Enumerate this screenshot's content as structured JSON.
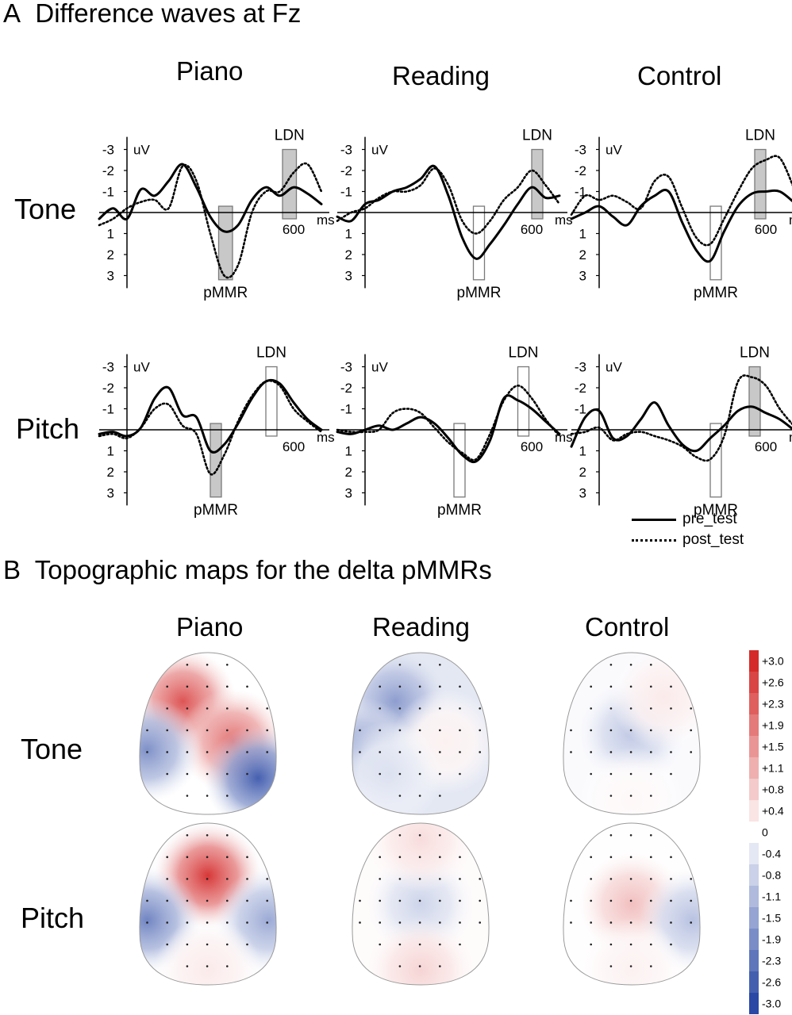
{
  "panel_a": {
    "letter": "A",
    "title": "Difference waves at Fz",
    "columns": [
      "Piano",
      "Reading",
      "Control"
    ],
    "rows": [
      "Tone",
      "Pitch"
    ],
    "legend": [
      {
        "label": "pre_test",
        "style": "solid"
      },
      {
        "label": "post_test",
        "style": "dotted"
      }
    ]
  },
  "panel_b": {
    "letter": "B",
    "title": "Topographic maps for the delta pMMRs",
    "columns": [
      "Piano",
      "Reading",
      "Control"
    ],
    "rows": [
      "Tone",
      "Pitch"
    ],
    "colorbar": {
      "labels": [
        "+3.0",
        "+2.6",
        "+2.3",
        "+1.9",
        "+1.5",
        "+1.1",
        "+0.8",
        "+0.4",
        "0",
        "-0.4",
        "-0.8",
        "-1.1",
        "-1.5",
        "-1.9",
        "-2.3",
        "-2.6",
        "-3.0"
      ],
      "max_color": "#d42a2a",
      "mid_color": "#ffffff",
      "min_color": "#2a48a4"
    },
    "maps": [
      {
        "row": "Tone",
        "column": "Piano",
        "blobs": [
          {
            "pos": "upper-left",
            "value": 2.4
          },
          {
            "pos": "center-right",
            "value": 2.0
          },
          {
            "pos": "left-edge",
            "value": -1.8
          },
          {
            "pos": "lower-right",
            "value": -2.6
          }
        ]
      },
      {
        "row": "Tone",
        "column": "Reading",
        "blobs": [
          {
            "pos": "upper-left",
            "value": -1.6
          },
          {
            "pos": "left-edge",
            "value": -1.5
          },
          {
            "pos": "center-right",
            "value": 0.2
          },
          {
            "pos": "lower-left",
            "value": -0.5
          }
        ]
      },
      {
        "row": "Tone",
        "column": "Control",
        "blobs": [
          {
            "pos": "center",
            "value": -0.9
          },
          {
            "pos": "upper-right",
            "value": 0.3
          },
          {
            "pos": "bottom",
            "value": 0.1
          }
        ]
      },
      {
        "row": "Pitch",
        "column": "Piano",
        "blobs": [
          {
            "pos": "upper-center",
            "value": 2.8
          },
          {
            "pos": "left-edge",
            "value": -2.0
          },
          {
            "pos": "right-edge",
            "value": -1.4
          },
          {
            "pos": "bottom",
            "value": 0.3
          }
        ]
      },
      {
        "row": "Pitch",
        "column": "Reading",
        "blobs": [
          {
            "pos": "center",
            "value": -0.7
          },
          {
            "pos": "top",
            "value": 0.5
          },
          {
            "pos": "bottom",
            "value": 0.6
          }
        ]
      },
      {
        "row": "Pitch",
        "column": "Control",
        "blobs": [
          {
            "pos": "center",
            "value": 0.9
          },
          {
            "pos": "right-edge",
            "value": -1.0
          },
          {
            "pos": "bottom",
            "value": 0.2
          }
        ]
      }
    ]
  },
  "chart_data": [
    {
      "type": "line",
      "row": "Tone",
      "column": "Piano",
      "xlabel": "ms",
      "ylabel": "uV",
      "x_ticks": [
        600
      ],
      "y_ticks": [
        -3,
        -2,
        -1,
        1,
        2,
        3
      ],
      "y_inverted": true,
      "x": [
        -100,
        -50,
        0,
        50,
        100,
        150,
        200,
        250,
        300,
        350,
        400,
        450,
        500,
        550,
        600,
        650,
        700
      ],
      "series": [
        {
          "name": "pre_test",
          "values": [
            0.3,
            -0.2,
            0.3,
            -1.1,
            -0.8,
            -1.5,
            -2.3,
            -1.2,
            0.2,
            0.9,
            0.6,
            -0.6,
            -1.2,
            -0.8,
            -1.2,
            -0.9,
            -0.4
          ]
        },
        {
          "name": "post_test",
          "values": [
            0.6,
            0.3,
            -0.2,
            -0.5,
            -0.6,
            -0.2,
            -2.2,
            -1.5,
            1.0,
            3.0,
            2.5,
            0.0,
            -1.0,
            -1.0,
            -1.9,
            -2.3,
            -1.0
          ]
        }
      ],
      "annotations": [
        {
          "text": "pMMR",
          "window": [
            330,
            380
          ],
          "fill": "grey"
        },
        {
          "text": "LDN",
          "window": [
            560,
            610
          ],
          "fill": "grey"
        }
      ]
    },
    {
      "type": "line",
      "row": "Tone",
      "column": "Reading",
      "xlabel": "ms",
      "ylabel": "uV",
      "x_ticks": [
        600
      ],
      "y_ticks": [
        -3,
        -2,
        -1,
        1,
        2,
        3
      ],
      "y_inverted": true,
      "x": [
        -100,
        -50,
        0,
        50,
        100,
        150,
        200,
        250,
        300,
        350,
        400,
        450,
        500,
        550,
        600,
        650,
        700
      ],
      "series": [
        {
          "name": "pre_test",
          "values": [
            0.2,
            0.4,
            -0.4,
            -0.6,
            -1.0,
            -1.2,
            -1.6,
            -2.2,
            -0.8,
            1.2,
            2.2,
            1.5,
            0.6,
            -0.4,
            -1.2,
            -0.7,
            -0.8
          ]
        },
        {
          "name": "post_test",
          "values": [
            0.4,
            0.0,
            -0.2,
            -0.7,
            -1.0,
            -1.0,
            -1.3,
            -2.1,
            -1.3,
            0.4,
            1.0,
            0.4,
            -0.6,
            -1.2,
            -2.0,
            -1.3,
            -0.4
          ]
        }
      ],
      "annotations": [
        {
          "text": "pMMR",
          "window": [
            390,
            430
          ],
          "fill": "none"
        },
        {
          "text": "LDN",
          "window": [
            600,
            640
          ],
          "fill": "grey"
        }
      ]
    },
    {
      "type": "line",
      "row": "Tone",
      "column": "Control",
      "xlabel": "ms",
      "ylabel": "uV",
      "x_ticks": [
        600
      ],
      "y_ticks": [
        -3,
        -2,
        -1,
        1,
        2,
        3
      ],
      "y_inverted": true,
      "x": [
        -100,
        -50,
        0,
        50,
        100,
        150,
        200,
        250,
        300,
        350,
        400,
        450,
        500,
        550,
        600,
        650,
        700
      ],
      "series": [
        {
          "name": "pre_test",
          "values": [
            0.3,
            0.0,
            -0.3,
            0.2,
            0.6,
            -0.3,
            -0.8,
            -1.0,
            0.5,
            1.8,
            2.3,
            0.9,
            -0.3,
            -0.9,
            -1.0,
            -1.0,
            -0.5
          ]
        },
        {
          "name": "post_test",
          "values": [
            0.1,
            -0.8,
            -0.6,
            -0.8,
            -0.5,
            -0.2,
            -1.5,
            -1.7,
            -0.2,
            1.2,
            1.5,
            0.3,
            -1.0,
            -2.1,
            -2.5,
            -2.6,
            -1.2
          ]
        }
      ],
      "annotations": [
        {
          "text": "pMMR",
          "window": [
            400,
            440
          ],
          "fill": "none"
        },
        {
          "text": "LDN",
          "window": [
            560,
            600
          ],
          "fill": "grey"
        }
      ]
    },
    {
      "type": "line",
      "row": "Pitch",
      "column": "Piano",
      "xlabel": "ms",
      "ylabel": "uV",
      "x_ticks": [
        600
      ],
      "y_ticks": [
        -3,
        -2,
        -1,
        1,
        2,
        3
      ],
      "y_inverted": true,
      "x": [
        -100,
        -50,
        0,
        50,
        100,
        150,
        200,
        250,
        300,
        350,
        400,
        450,
        500,
        550,
        600,
        650,
        700
      ],
      "series": [
        {
          "name": "pre_test",
          "values": [
            0.2,
            0.1,
            0.3,
            -0.1,
            -1.5,
            -2.0,
            -0.7,
            -0.6,
            1.0,
            0.7,
            -0.3,
            -1.5,
            -2.3,
            -2.2,
            -1.3,
            -0.5,
            0.0
          ]
        },
        {
          "name": "post_test",
          "values": [
            0.3,
            0.2,
            0.4,
            -0.1,
            -1.0,
            -1.2,
            -0.2,
            0.2,
            2.1,
            1.2,
            -0.4,
            -1.6,
            -2.3,
            -2.1,
            -1.0,
            -0.4,
            0.1
          ]
        }
      ],
      "annotations": [
        {
          "text": "pMMR",
          "window": [
            300,
            340
          ],
          "fill": "grey"
        },
        {
          "text": "LDN",
          "window": [
            500,
            540
          ],
          "fill": "none"
        }
      ]
    },
    {
      "type": "line",
      "row": "Pitch",
      "column": "Reading",
      "xlabel": "ms",
      "ylabel": "uV",
      "x_ticks": [
        600
      ],
      "y_ticks": [
        -3,
        -2,
        -1,
        1,
        2,
        3
      ],
      "y_inverted": true,
      "x": [
        -100,
        -50,
        0,
        50,
        100,
        150,
        200,
        250,
        300,
        350,
        400,
        450,
        500,
        550,
        600,
        650,
        700
      ],
      "series": [
        {
          "name": "pre_test",
          "values": [
            0.1,
            0.2,
            0.0,
            -0.2,
            0.0,
            -0.3,
            -0.6,
            -0.3,
            0.4,
            1.2,
            1.5,
            0.5,
            -1.5,
            -1.4,
            -1.0,
            -0.4,
            0.2
          ]
        },
        {
          "name": "post_test",
          "values": [
            0.0,
            0.1,
            0.1,
            0.0,
            -0.8,
            -1.0,
            -0.8,
            -0.1,
            0.6,
            1.1,
            1.4,
            0.2,
            -1.4,
            -2.1,
            -1.5,
            -0.5,
            0.3
          ]
        }
      ],
      "annotations": [
        {
          "text": "pMMR",
          "window": [
            320,
            360
          ],
          "fill": "none"
        },
        {
          "text": "LDN",
          "window": [
            550,
            590
          ],
          "fill": "none"
        }
      ]
    },
    {
      "type": "line",
      "row": "Pitch",
      "column": "Control",
      "xlabel": "ms",
      "ylabel": "uV",
      "x_ticks": [
        600
      ],
      "y_ticks": [
        -3,
        -2,
        -1,
        1,
        2,
        3
      ],
      "y_inverted": true,
      "x": [
        -100,
        -50,
        0,
        50,
        100,
        150,
        200,
        250,
        300,
        350,
        400,
        450,
        500,
        550,
        600,
        650,
        700
      ],
      "series": [
        {
          "name": "pre_test",
          "values": [
            0.8,
            -0.6,
            -0.9,
            0.4,
            0.3,
            -0.5,
            -1.3,
            -0.2,
            0.7,
            1.0,
            0.4,
            -0.2,
            -0.9,
            -1.1,
            -0.8,
            -0.5,
            0.0
          ]
        },
        {
          "name": "post_test",
          "values": [
            0.2,
            0.1,
            -0.1,
            0.5,
            0.2,
            0.1,
            0.3,
            0.5,
            0.8,
            1.3,
            1.4,
            0.3,
            -2.3,
            -2.5,
            -2.1,
            -1.0,
            -0.2
          ]
        }
      ],
      "annotations": [
        {
          "text": "pMMR",
          "window": [
            400,
            440
          ],
          "fill": "none"
        },
        {
          "text": "LDN",
          "window": [
            540,
            580
          ],
          "fill": "grey"
        }
      ]
    }
  ]
}
